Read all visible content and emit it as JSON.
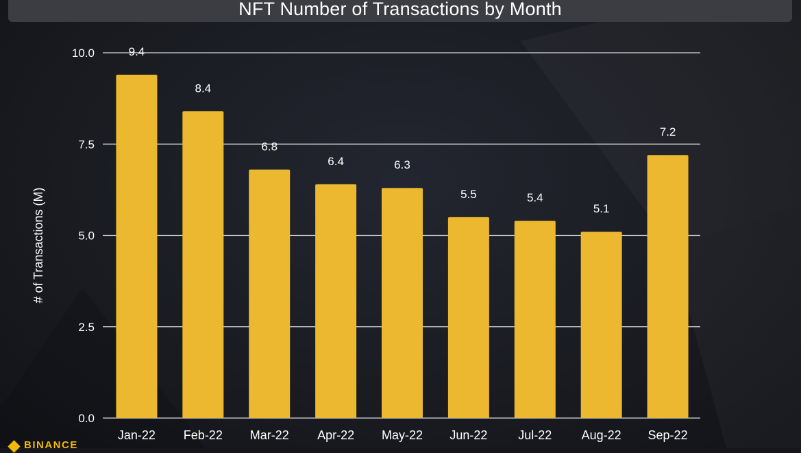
{
  "title": "NFT Number of Transactions by Month",
  "brand": {
    "name": "BINANCE"
  },
  "colors": {
    "bar": "#ebb82f",
    "grid": "#d9d9d9",
    "text": "#ffffff",
    "title_bar": "#3b3d42",
    "background": "#1a1c22",
    "brand": "#f0b90b"
  },
  "chart_data": {
    "type": "bar",
    "title": "NFT Number of Transactions by Month",
    "xlabel": "",
    "ylabel": "# of Transactions (M)",
    "ylim": [
      0,
      10
    ],
    "yticks": [
      "0.0",
      "2.5",
      "5.0",
      "7.5",
      "10.0"
    ],
    "grid": true,
    "legend": "none",
    "categories": [
      "Jan-22",
      "Feb-22",
      "Mar-22",
      "Apr-22",
      "May-22",
      "Jun-22",
      "Jul-22",
      "Aug-22",
      "Sep-22"
    ],
    "values": [
      9.4,
      8.4,
      6.8,
      6.4,
      6.3,
      5.5,
      5.4,
      5.1,
      7.2
    ],
    "value_labels": [
      "9.4",
      "8.4",
      "6.8",
      "6.4",
      "6.3",
      "5.5",
      "5.4",
      "5.1",
      "7.2"
    ]
  }
}
